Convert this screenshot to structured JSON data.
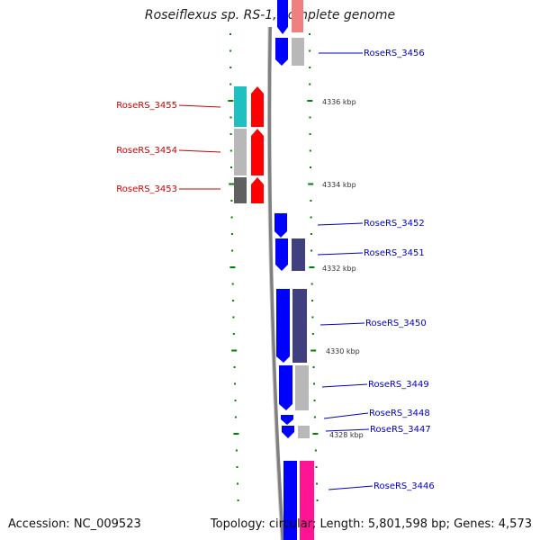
{
  "title": "Roseiflexus sp. RS-1, complete genome",
  "footer": {
    "accession": "Accession: NC_009523",
    "topology": "Topology: circular; Length: 5,801,598 bp; Genes: 4,573"
  },
  "colors": {
    "reverse_strand_label": "#cc0000",
    "forward_strand_label": "#0000cc",
    "forward_gene": "#0000ff",
    "reverse_gene": "#ff0000",
    "tick": "#008000",
    "backbone": "#808080"
  },
  "kbp_markers": [
    {
      "label": "4336 kbp",
      "kbp": 4336
    },
    {
      "label": "4334 kbp",
      "kbp": 4334
    },
    {
      "label": "4332 kbp",
      "kbp": 4332
    },
    {
      "label": "4330 kbp",
      "kbp": 4330
    },
    {
      "label": "4328 kbp",
      "kbp": 4328
    }
  ],
  "reverse_genes": [
    {
      "label": "RoseRS_3455",
      "cog_color": "#20c0c0"
    },
    {
      "label": "RoseRS_3454",
      "cog_color": "#b8b8b8"
    },
    {
      "label": "RoseRS_3453",
      "cog_color": "#606060"
    }
  ],
  "forward_genes": [
    {
      "label": "RoseRS_3456",
      "cog_color": "#b8b8b8"
    },
    {
      "label": "RoseRS_3452",
      "cog_color": ""
    },
    {
      "label": "RoseRS_3451",
      "cog_color": "#404080"
    },
    {
      "label": "RoseRS_3450",
      "cog_color": "#404080"
    },
    {
      "label": "RoseRS_3449",
      "cog_color": "#b8b8b8"
    },
    {
      "label": "RoseRS_3448",
      "cog_color": ""
    },
    {
      "label": "RoseRS_3447",
      "cog_color": "#b8b8b8"
    },
    {
      "label": "RoseRS_3446",
      "cog_color": "#ff1493"
    }
  ],
  "top_partial_gene": {
    "cog_color": "#f08080"
  }
}
